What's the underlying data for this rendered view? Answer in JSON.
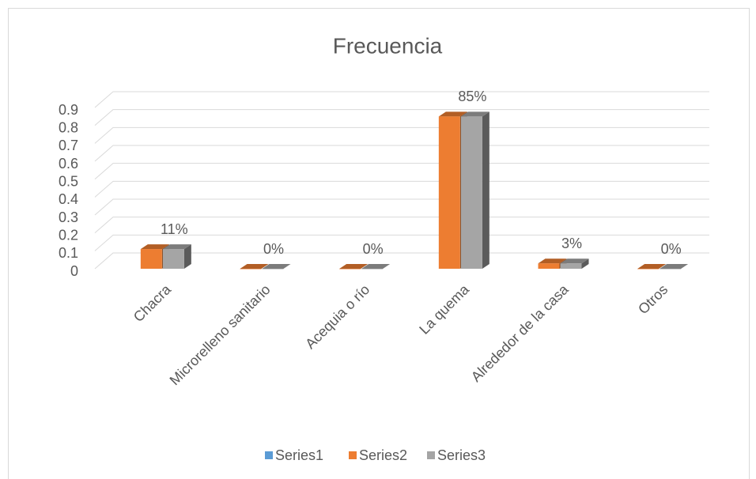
{
  "chart_data": {
    "type": "bar3d",
    "title": "Frecuencia",
    "categories": [
      "Chacra",
      "Microrelleno sanitario",
      "Acequia o río",
      "La quema",
      "Alrededor de la casa",
      "Otros"
    ],
    "series": [
      {
        "name": "Series1",
        "color": "#5b9bd5",
        "values": [
          null,
          null,
          null,
          null,
          null,
          null
        ]
      },
      {
        "name": "Series2",
        "color": "#ed7d31",
        "values": [
          0.11,
          0,
          0,
          0.85,
          0.03,
          0
        ]
      },
      {
        "name": "Series3",
        "color": "#a5a5a5",
        "values": [
          0.11,
          0,
          0,
          0.85,
          0.03,
          0
        ],
        "value_labels": [
          "11%",
          "0%",
          "0%",
          "85%",
          "3%",
          "0%"
        ]
      }
    ],
    "ylim": [
      0,
      0.9
    ],
    "yticks": [
      0,
      0.1,
      0.2,
      0.3,
      0.4,
      0.5,
      0.6,
      0.7,
      0.8,
      0.9
    ],
    "grid": true,
    "legend": "bottom"
  }
}
